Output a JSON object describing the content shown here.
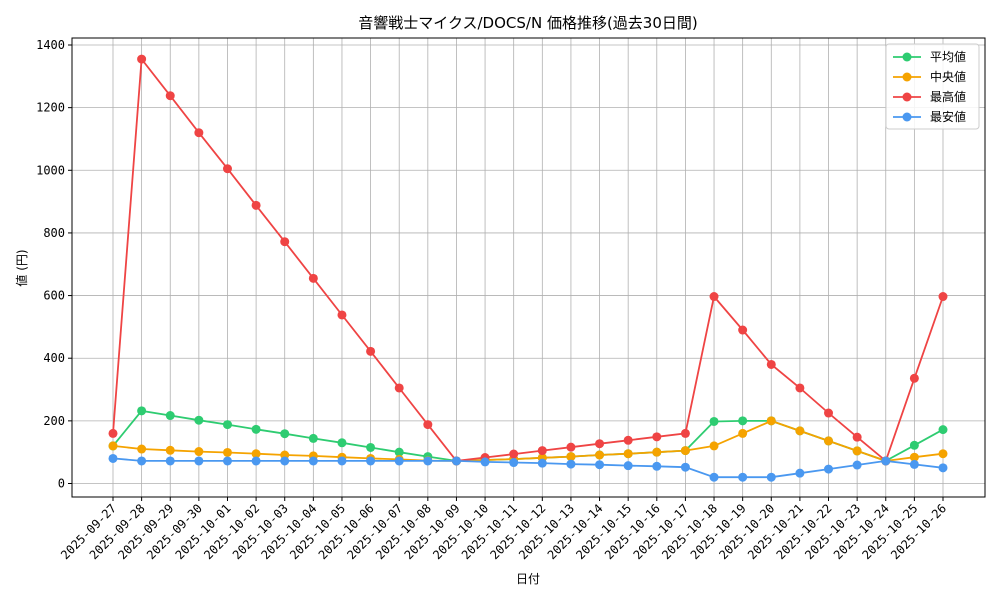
{
  "chart_data": {
    "type": "line",
    "title": "音響戦士マイクス/DOCS/N 価格推移(過去30日間)",
    "xlabel": "日付",
    "ylabel": "値 (円)",
    "ylim": [
      -45,
      1410
    ],
    "yticks": [
      0,
      200,
      400,
      600,
      800,
      1000,
      1200,
      1400
    ],
    "grid": true,
    "legend_position": "upper right",
    "categories": [
      "2025-09-27",
      "2025-09-28",
      "2025-09-29",
      "2025-09-30",
      "2025-10-01",
      "2025-10-02",
      "2025-10-03",
      "2025-10-04",
      "2025-10-05",
      "2025-10-06",
      "2025-10-07",
      "2025-10-08",
      "2025-10-09",
      "2025-10-10",
      "2025-10-11",
      "2025-10-12",
      "2025-10-13",
      "2025-10-14",
      "2025-10-15",
      "2025-10-16",
      "2025-10-17",
      "2025-10-18",
      "2025-10-19",
      "2025-10-20",
      "2025-10-21",
      "2025-10-22",
      "2025-10-23",
      "2025-10-24",
      "2025-10-25",
      "2025-10-26"
    ],
    "series": [
      {
        "name": "平均値",
        "color": "#2ecc71",
        "values": [
          120,
          232,
          217,
          202,
          188,
          173,
          159,
          144,
          130,
          115,
          100,
          86,
          72,
          75,
          78,
          82,
          86,
          91,
          95,
          100,
          105,
          198,
          200,
          200,
          168,
          136,
          104,
          72,
          122,
          172
        ]
      },
      {
        "name": "中央値",
        "color": "#f5a300",
        "values": [
          120,
          110,
          106,
          102,
          99,
          95,
          91,
          88,
          84,
          80,
          77,
          73,
          72,
          75,
          78,
          82,
          86,
          91,
          95,
          100,
          105,
          120,
          160,
          200,
          168,
          136,
          104,
          72,
          84,
          95
        ]
      },
      {
        "name": "最高値",
        "color": "#ef4444",
        "values": [
          160,
          1355,
          1238,
          1120,
          1005,
          888,
          772,
          655,
          538,
          422,
          305,
          188,
          72,
          83,
          94,
          105,
          116,
          127,
          138,
          149,
          160,
          597,
          490,
          380,
          305,
          225,
          148,
          72,
          336,
          597
        ]
      },
      {
        "name": "最安値",
        "color": "#4a98f0",
        "values": [
          80,
          72,
          72,
          72,
          72,
          72,
          72,
          72,
          72,
          72,
          72,
          72,
          72,
          69,
          67,
          65,
          62,
          60,
          57,
          55,
          52,
          20,
          20,
          20,
          33,
          46,
          59,
          72,
          61,
          50
        ]
      }
    ]
  }
}
